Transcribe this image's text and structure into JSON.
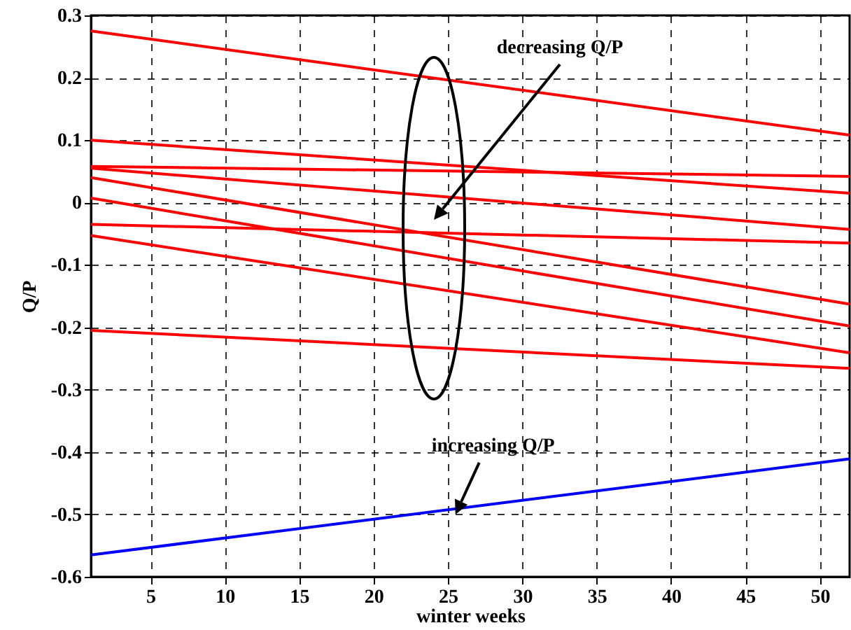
{
  "chart_data": {
    "type": "line",
    "xlabel": "winter weeks",
    "ylabel": "Q/P",
    "x": [
      1,
      52
    ],
    "series": [
      {
        "color": "#ff0000",
        "values": [
          0.275,
          0.108
        ]
      },
      {
        "color": "#ff0000",
        "values": [
          0.1,
          0.015
        ]
      },
      {
        "color": "#ff0000",
        "values": [
          0.058,
          0.042
        ]
      },
      {
        "color": "#ff0000",
        "values": [
          0.055,
          -0.043
        ]
      },
      {
        "color": "#ff0000",
        "values": [
          0.04,
          -0.163
        ]
      },
      {
        "color": "#ff0000",
        "values": [
          0.007,
          -0.198
        ]
      },
      {
        "color": "#ff0000",
        "values": [
          -0.035,
          -0.065
        ]
      },
      {
        "color": "#ff0000",
        "values": [
          -0.053,
          -0.241
        ]
      },
      {
        "color": "#ff0000",
        "values": [
          -0.205,
          -0.266
        ]
      },
      {
        "color": "#0000ff",
        "values": [
          -0.565,
          -0.411
        ]
      }
    ],
    "xlim": [
      1,
      52
    ],
    "xticks": [
      5,
      10,
      15,
      20,
      25,
      30,
      35,
      40,
      45,
      50
    ],
    "ylim": [
      -0.6,
      0.3
    ],
    "yticks": [
      -0.6,
      -0.5,
      -0.4,
      -0.3,
      -0.2,
      -0.1,
      0,
      0.1,
      0.2,
      0.3
    ],
    "grid": true,
    "marker": "none",
    "line_style": "solid",
    "annotations": [
      "decreasing Q/P",
      {
        "text": "increasing Q/P",
        "x": 25.5,
        "y": -0.5
      }
    ]
  }
}
